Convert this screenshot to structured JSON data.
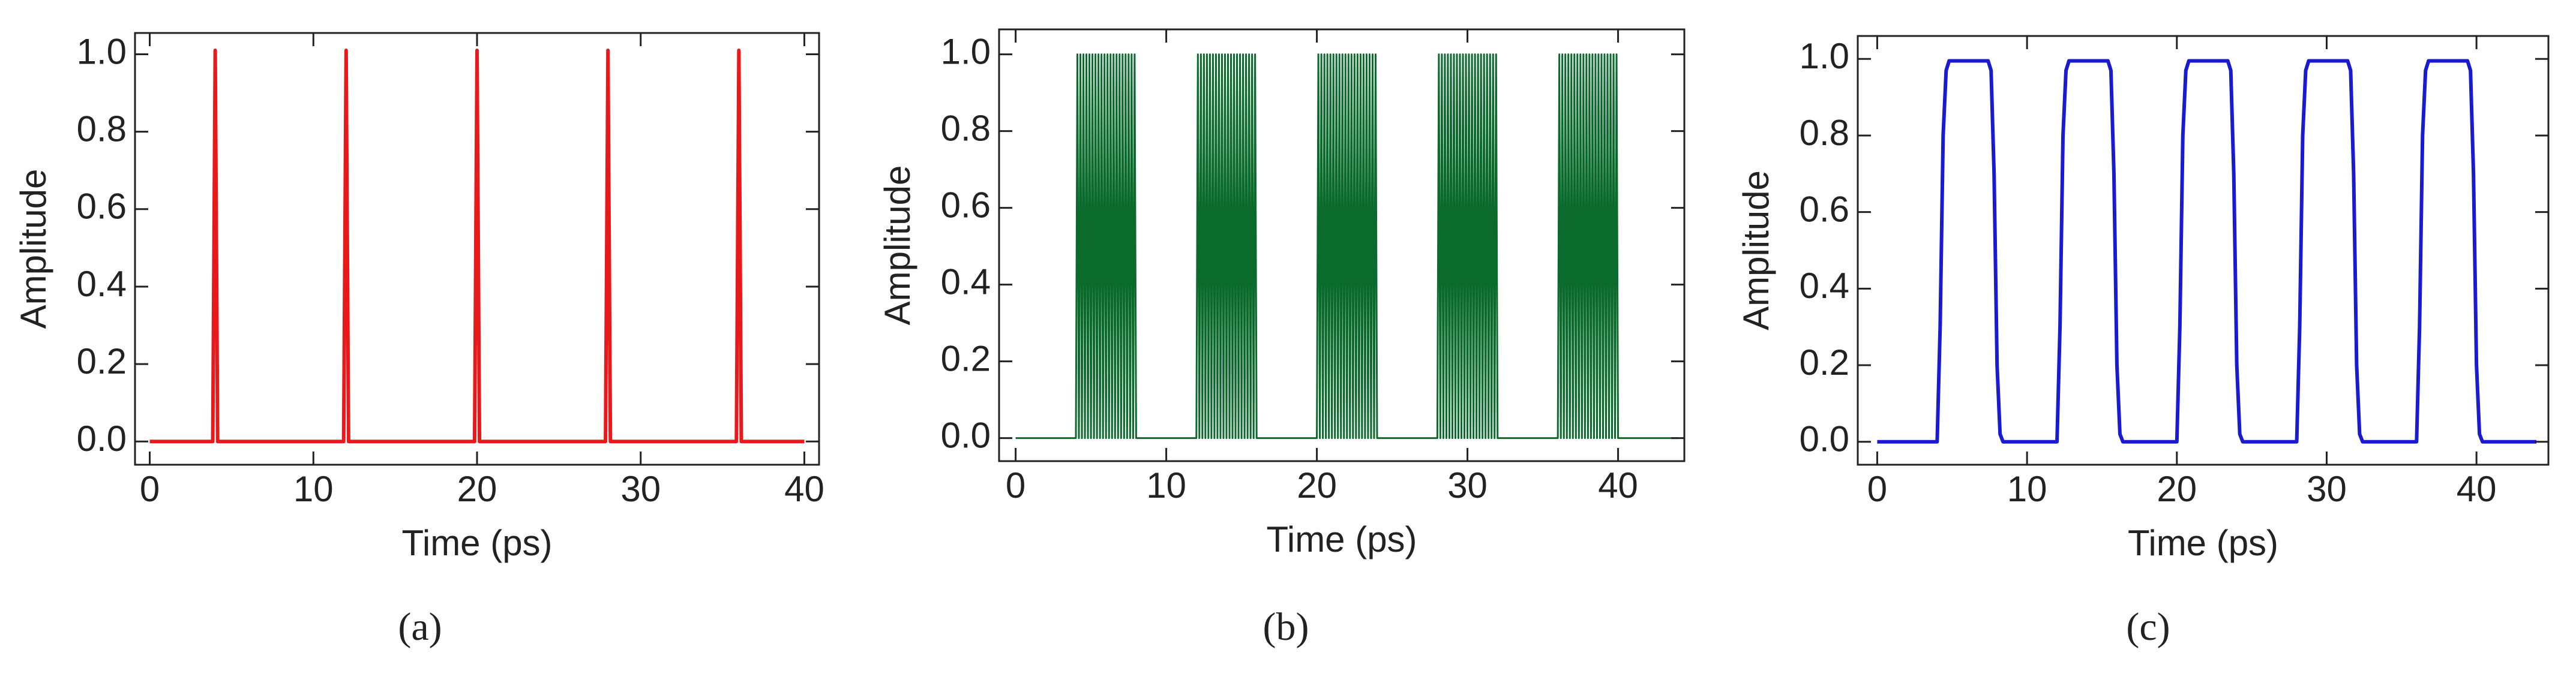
{
  "chart_data": [
    {
      "type": "line",
      "xlabel": "Time (ps)",
      "ylabel": "Amplitude",
      "caption": "(a)",
      "color": "#e8191b",
      "xlim": [
        -0.9,
        40.9
      ],
      "ylim": [
        -0.06,
        1.055
      ],
      "xticks": [
        0,
        10,
        20,
        30,
        40
      ],
      "yticks": [
        {
          "value": 0,
          "label": "0.0"
        },
        0.2,
        0.4,
        0.6,
        0.8,
        {
          "value": 1,
          "label": "1.0"
        }
      ],
      "x": [
        0,
        3.85,
        4,
        4.15,
        11.85,
        12,
        12.15,
        19.85,
        20,
        20.15,
        27.85,
        28,
        28.15,
        35.85,
        36,
        36.15,
        40
      ],
      "values": [
        0,
        0,
        1.01,
        0,
        0,
        1.01,
        0,
        0,
        1.01,
        0,
        0,
        1.01,
        0,
        0,
        1.01,
        0,
        0
      ]
    },
    {
      "type": "line",
      "xlabel": "Time (ps)",
      "ylabel": "Amplitude",
      "caption": "(b)",
      "color": "#0b6b2c",
      "xlim": [
        -1.1,
        44.4
      ],
      "ylim": [
        -0.06,
        1.065
      ],
      "xticks": [
        0,
        10,
        20,
        30,
        40
      ],
      "yticks": [
        {
          "value": 0,
          "label": "0.0"
        },
        0.2,
        0.4,
        0.6,
        0.8,
        {
          "value": 1,
          "label": "1.0"
        }
      ],
      "x": [
        0,
        4,
        4.1,
        4.2,
        4.3,
        4.4,
        4.5,
        4.6,
        4.7,
        4.8,
        4.9,
        5,
        5.1,
        5.2,
        5.3,
        5.4,
        5.5,
        5.6,
        5.7,
        5.8,
        5.9,
        6,
        6.1,
        6.2,
        6.3,
        6.4,
        6.5,
        6.6,
        6.7,
        6.8,
        6.9,
        7,
        7.1,
        7.2,
        7.3,
        7.4,
        7.5,
        7.6,
        7.7,
        7.8,
        7.9,
        8,
        12,
        12.1,
        12.2,
        12.3,
        12.4,
        12.5,
        12.6,
        12.7,
        12.8,
        12.9,
        13,
        13.1,
        13.2,
        13.3,
        13.4,
        13.5,
        13.6,
        13.7,
        13.8,
        13.9,
        14,
        14.1,
        14.2,
        14.3,
        14.4,
        14.5,
        14.6,
        14.7,
        14.8,
        14.9,
        15,
        15.1,
        15.2,
        15.3,
        15.4,
        15.5,
        15.6,
        15.7,
        15.8,
        15.9,
        16,
        20,
        20.1,
        20.2,
        20.3,
        20.4,
        20.5,
        20.6,
        20.7,
        20.8,
        20.9,
        21,
        21.1,
        21.2,
        21.3,
        21.4,
        21.5,
        21.6,
        21.7,
        21.8,
        21.9,
        22,
        22.1,
        22.2,
        22.3,
        22.4,
        22.5,
        22.6,
        22.7,
        22.8,
        22.9,
        23,
        23.1,
        23.2,
        23.3,
        23.4,
        23.5,
        23.6,
        23.7,
        23.8,
        23.9,
        24,
        28,
        28.1,
        28.2,
        28.3,
        28.4,
        28.5,
        28.6,
        28.7,
        28.8,
        28.9,
        29,
        29.1,
        29.2,
        29.3,
        29.4,
        29.5,
        29.6,
        29.7,
        29.8,
        29.9,
        30,
        30.1,
        30.2,
        30.3,
        30.4,
        30.5,
        30.6,
        30.7,
        30.8,
        30.9,
        31,
        31.1,
        31.2,
        31.3,
        31.4,
        31.5,
        31.6,
        31.7,
        31.8,
        31.9,
        32,
        36,
        36.1,
        36.2,
        36.3,
        36.4,
        36.5,
        36.6,
        36.7,
        36.8,
        36.9,
        37,
        37.1,
        37.2,
        37.3,
        37.4,
        37.5,
        37.6,
        37.7,
        37.8,
        37.9,
        38,
        38.1,
        38.2,
        38.3,
        38.4,
        38.5,
        38.6,
        38.7,
        38.8,
        38.9,
        39,
        39.1,
        39.2,
        39.3,
        39.4,
        39.5,
        39.6,
        39.7,
        39.8,
        39.9,
        40,
        44
      ],
      "values": [
        0,
        0,
        1,
        0,
        1,
        0,
        1,
        0,
        1,
        0,
        1,
        0,
        1,
        0,
        1,
        0,
        1,
        0,
        1,
        0,
        1,
        0,
        1,
        0,
        1,
        0,
        1,
        0,
        1,
        0,
        1,
        0,
        1,
        0,
        1,
        0,
        1,
        0,
        1,
        0,
        1,
        0,
        0,
        1,
        0,
        1,
        0,
        1,
        0,
        1,
        0,
        1,
        0,
        1,
        0,
        1,
        0,
        1,
        0,
        1,
        0,
        1,
        0,
        1,
        0,
        1,
        0,
        1,
        0,
        1,
        0,
        1,
        0,
        1,
        0,
        1,
        0,
        1,
        0,
        1,
        0,
        1,
        0,
        0,
        1,
        0,
        1,
        0,
        1,
        0,
        1,
        0,
        1,
        0,
        1,
        0,
        1,
        0,
        1,
        0,
        1,
        0,
        1,
        0,
        1,
        0,
        1,
        0,
        1,
        0,
        1,
        0,
        1,
        0,
        1,
        0,
        1,
        0,
        1,
        0,
        1,
        0,
        1,
        0,
        0,
        1,
        0,
        1,
        0,
        1,
        0,
        1,
        0,
        1,
        0,
        1,
        0,
        1,
        0,
        1,
        0,
        1,
        0,
        1,
        0,
        1,
        0,
        1,
        0,
        1,
        0,
        1,
        0,
        1,
        0,
        1,
        0,
        1,
        0,
        1,
        0,
        1,
        0,
        1,
        0,
        0,
        1,
        0,
        1,
        0,
        1,
        0,
        1,
        0,
        1,
        0,
        1,
        0,
        1,
        0,
        1,
        0,
        1,
        0,
        1,
        0,
        1,
        0,
        1,
        0,
        1,
        0,
        1,
        0,
        1,
        0,
        1,
        0,
        1,
        0,
        1,
        0,
        1,
        0,
        1,
        0,
        0
      ]
    },
    {
      "type": "line",
      "xlabel": "Time (ps)",
      "ylabel": "Amplitude",
      "caption": "(c)",
      "color": "#1a1ad0",
      "xlim": [
        -1.3,
        44.8
      ],
      "ylim": [
        -0.06,
        1.06
      ],
      "xticks": [
        0,
        10,
        20,
        30,
        40
      ],
      "yticks": [
        {
          "value": 0,
          "label": "0.0"
        },
        0.2,
        0.4,
        0.6,
        0.8,
        {
          "value": 1,
          "label": "1.0"
        }
      ],
      "x": [
        0,
        4,
        4.2,
        4.4,
        4.6,
        4.8,
        7.4,
        7.6,
        7.8,
        8,
        8.2,
        8.4,
        12,
        12.2,
        12.4,
        12.6,
        12.8,
        15.4,
        15.6,
        15.8,
        16,
        16.2,
        16.4,
        20,
        20.2,
        20.4,
        20.6,
        20.8,
        23.4,
        23.6,
        23.8,
        24,
        24.2,
        24.4,
        28,
        28.2,
        28.4,
        28.6,
        28.8,
        31.4,
        31.6,
        31.8,
        32,
        32.2,
        32.4,
        36,
        36.2,
        36.4,
        36.6,
        36.8,
        39.4,
        39.6,
        39.8,
        40,
        40.2,
        40.4,
        44
      ],
      "values": [
        0,
        0,
        0.3,
        0.8,
        0.97,
        0.995,
        0.995,
        0.97,
        0.7,
        0.2,
        0.02,
        0,
        0,
        0.3,
        0.8,
        0.97,
        0.995,
        0.995,
        0.97,
        0.7,
        0.2,
        0.02,
        0,
        0,
        0.3,
        0.8,
        0.97,
        0.995,
        0.995,
        0.97,
        0.7,
        0.2,
        0.02,
        0,
        0,
        0.3,
        0.8,
        0.97,
        0.995,
        0.995,
        0.97,
        0.7,
        0.2,
        0.02,
        0,
        0,
        0.3,
        0.8,
        0.97,
        0.995,
        0.995,
        0.97,
        0.7,
        0.2,
        0.02,
        0,
        0
      ]
    }
  ]
}
